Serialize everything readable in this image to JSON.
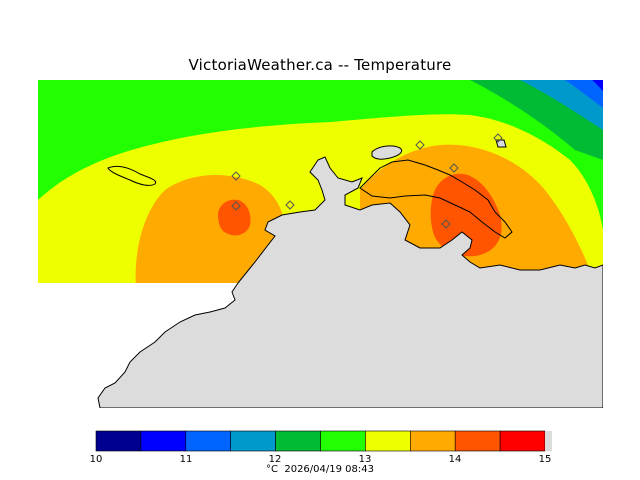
{
  "title": "VictoriaWeather.ca -- Temperature",
  "colors": {
    "land": "#dcdcdc",
    "bands": [
      "#000090",
      "#0000ff",
      "#0064ff",
      "#0099cc",
      "#00bb33",
      "#22ff00",
      "#eeff00",
      "#ffaa00",
      "#ff5500",
      "#ff0000"
    ]
  },
  "colorbar": {
    "ticks": [
      "10",
      "11",
      "12",
      "13",
      "14",
      "15"
    ],
    "units_label": "°C",
    "timestamp": "2026/04/19 08:43"
  },
  "stations": {
    "count": 7
  }
}
